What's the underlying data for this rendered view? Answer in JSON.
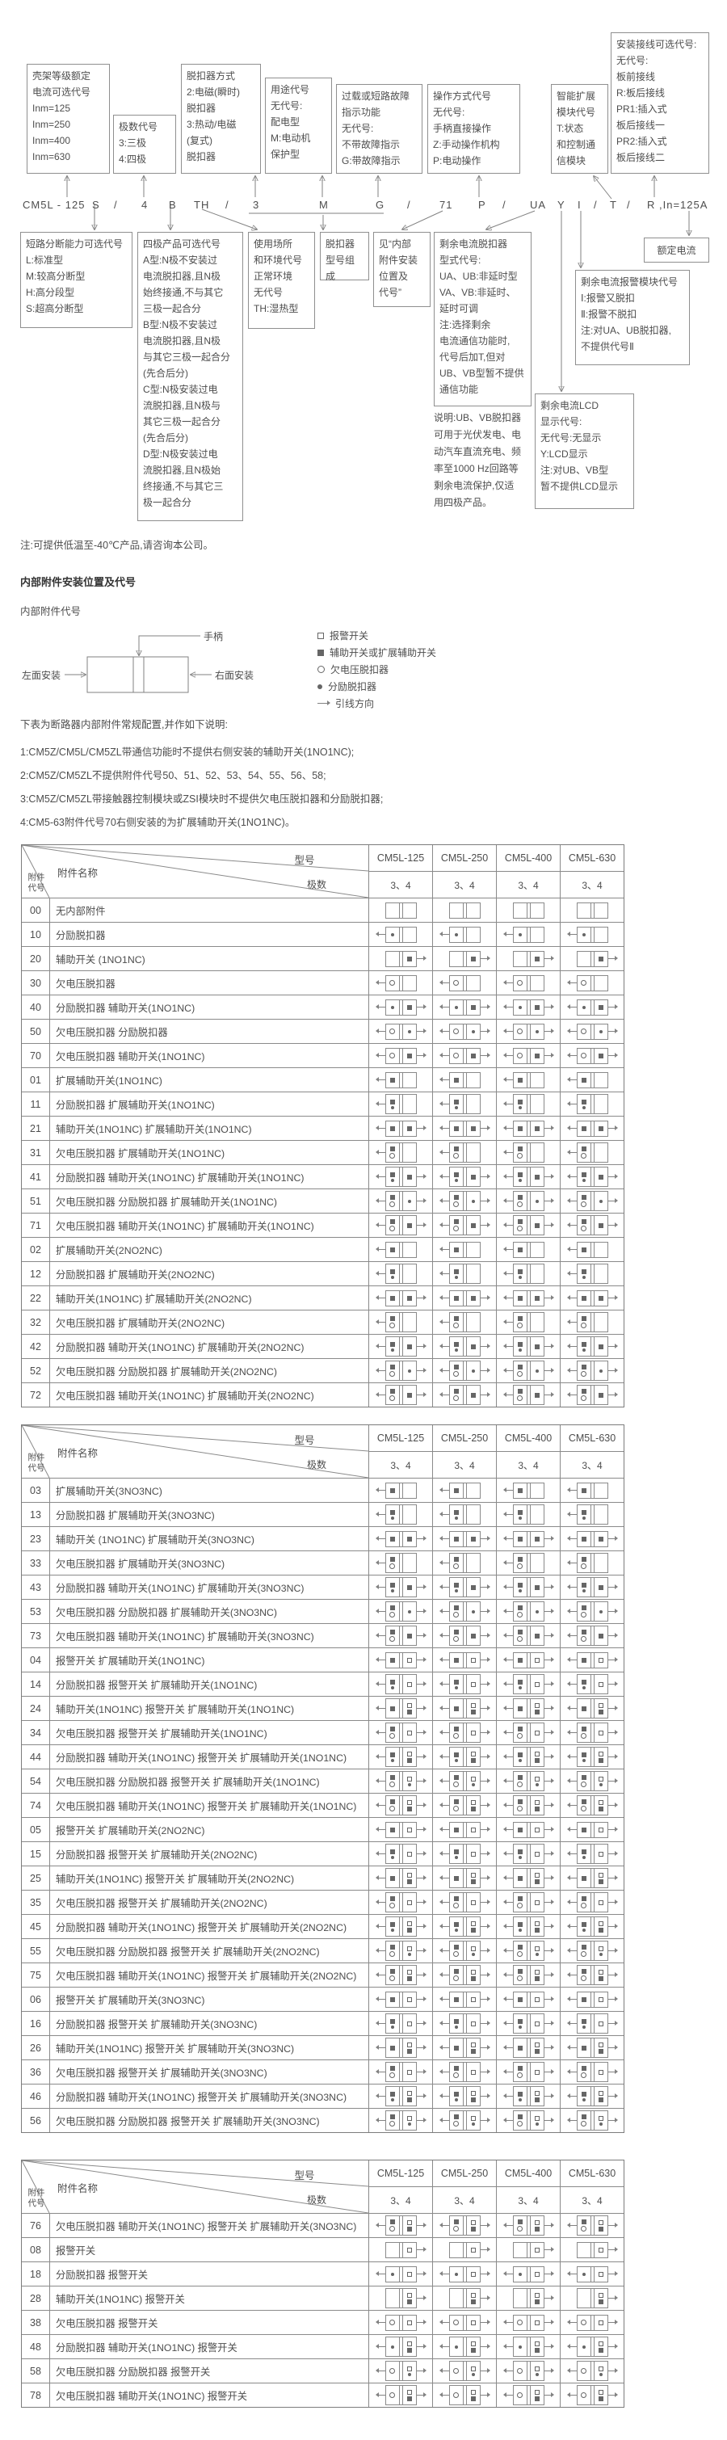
{
  "model_code": {
    "parts": [
      "CM5L - 125",
      "S",
      "/",
      "4",
      "B",
      "TH",
      "/",
      "3",
      "M",
      "G",
      "/",
      "71",
      "P",
      "/",
      "UA",
      "Y",
      "I",
      "/",
      "T",
      "/",
      "R",
      ",In=125A"
    ]
  },
  "top_boxes": [
    {
      "id": "frame-current",
      "text": "壳架等级额定\n电流可选代号\nInm=125\nInm=250\nInm=400\nInm=630"
    },
    {
      "id": "poles",
      "text": "极数代号\n3:三极\n4:四极"
    },
    {
      "id": "trip-mode",
      "text": "脱扣器方式\n2:电磁(瞬时)\n 脱扣器\n3:热动/电磁\n (复式)\n 脱扣器"
    },
    {
      "id": "usage",
      "text": "用途代号\n无代号:\n配电型\nM:电动机\n 保护型"
    },
    {
      "id": "fault-indication",
      "text": "过载或短路故障\n指示功能\n无代号:\n不带故障指示\nG:带故障指示"
    },
    {
      "id": "operation-mode",
      "text": "操作方式代号\n无代号:\n手柄直接操作\nZ:手动操作机构\nP:电动操作"
    },
    {
      "id": "smart-module",
      "text": "智能扩展\n模块代号\nT:状态\n和控制通\n信模块"
    },
    {
      "id": "wiring",
      "text": "安装接线可选代号:\n无代号:\n板前接线\nR:板后接线\nPR1:插入式\n 板后接线一\nPR2:插入式\n 板后接线二"
    }
  ],
  "bottom_boxes": [
    {
      "id": "breaking-capacity",
      "text": "短路分断能力可选代号\nL:标准型\nM:较高分断型\nH:高分段型\nS:超高分断型"
    },
    {
      "id": "four-pole-option",
      "text": "四极产品可选代号\nA型:N极不安装过\n电流脱扣器,且N极\n始终接通,不与其它\n三极一起合分\nB型:N极不安装过\n电流脱扣器,且N极\n与其它三极一起合分\n(先合后分)\nC型:N极安装过电\n流脱扣器,且N极与\n其它三极一起合分\n(先合后分)\nD型:N极安装过电\n流脱扣器,且N极始\n终接通,不与其它三\n极一起合分"
    },
    {
      "id": "environment",
      "text": "使用场所\n和环境代号\n正常环境\n无代号\nTH:湿热型"
    },
    {
      "id": "trip-unit-model",
      "text": "脱扣器\n型号组成"
    },
    {
      "id": "internal-accessory-ref",
      "text": "见“内部\n附件安装\n位置及\n代号”"
    },
    {
      "id": "residual-trip-type",
      "text": "剩余电流脱扣器\n型式代号:\nUA、UB:非延时型\nVA、VB:非延时、\n 延时可调\n注:选择剩余\n电流通信功能时,\n代号后加T,但对\nUB、VB型暂不提供\n通信功能"
    },
    {
      "id": "residual-alarm-module",
      "text": "剩余电流报警模块代号\nⅠ:报警又脱扣\nⅡ:报警不脱扣\n注:对UA、UB脱扣器,\n不提供代号Ⅱ"
    },
    {
      "id": "residual-lcd",
      "text": "剩余电流LCD\n显示代号:\n无代号:无显示\nY:LCD显示\n注:对UB、VB型\n暂不提供LCD显示"
    },
    {
      "id": "rated-current",
      "text": "额定电流"
    }
  ],
  "residual_note": "说明:UB、VB脱扣器\n可用于光伏发电、电\n动汽车直流充电、频\n率至1000 Hz回路等\n剩余电流保护,仅适\n用四极产品。",
  "low_temp_note": "注:可提供低温至-40℃产品,请咨询本公司。",
  "section2": {
    "heading": "内部附件安装位置及代号",
    "subheading": "内部附件代号",
    "handle_label": "手柄",
    "left_mount_label": "左面安装",
    "right_mount_label": "右面安装",
    "legend": [
      {
        "symbol": "alarm",
        "label": "报警开关"
      },
      {
        "symbol": "aux",
        "label": "辅助开关或扩展辅助开关"
      },
      {
        "symbol": "uv",
        "label": "欠电压脱扣器"
      },
      {
        "symbol": "shunt",
        "label": "分励脱扣器"
      },
      {
        "symbol": "lead",
        "label": "引线方向"
      }
    ],
    "intro": "下表为断路器内部附件常规配置,并作如下说明:",
    "notes": [
      "1:CM5Z/CM5L/CM5ZL带通信功能时不提供右侧安装的辅助开关(1NO1NC);",
      "2:CM5Z/CM5ZL不提供附件代号50、51、52、53、54、55、56、58;",
      "3:CM5Z/CM5ZL带接触器控制模块或ZSI模块时不提供欠电压脱扣器和分励脱扣器;",
      "4:CM5-63附件代号70右侧安装的为扩展辅助开关(1NO1NC)。"
    ]
  },
  "table_header": {
    "model_label": "型号",
    "poles_label": "极数",
    "name_label": "附件名称",
    "code_label": "附件\n代号",
    "models": [
      "CM5L-125",
      "CM5L-250",
      "CM5L-400",
      "CM5L-630"
    ],
    "poles_value": "3、4"
  },
  "tables": [
    {
      "rows": [
        {
          "code": "00",
          "name": "无内部附件",
          "left": [],
          "right": []
        },
        {
          "code": "10",
          "name": "分励脱扣器",
          "left": [
            "shunt"
          ],
          "right": []
        },
        {
          "code": "20",
          "name": "辅助开关 (1NO1NC)",
          "left": [],
          "right": [
            "aux"
          ]
        },
        {
          "code": "30",
          "name": "欠电压脱扣器",
          "left": [
            "uv"
          ],
          "right": []
        },
        {
          "code": "40",
          "name": "分励脱扣器 辅助开关(1NO1NC)",
          "left": [
            "shunt"
          ],
          "right": [
            "aux"
          ]
        },
        {
          "code": "50",
          "name": "欠电压脱扣器 分励脱扣器",
          "left": [
            "uv"
          ],
          "right": [
            "shunt"
          ]
        },
        {
          "code": "70",
          "name": "欠电压脱扣器 辅助开关(1NO1NC)",
          "left": [
            "uv"
          ],
          "right": [
            "aux"
          ]
        },
        {
          "code": "01",
          "name": "扩展辅助开关(1NO1NC)",
          "left": [
            "aux"
          ],
          "right": []
        },
        {
          "code": "11",
          "name": "分励脱扣器 扩展辅助开关(1NO1NC)",
          "left": [
            "aux",
            "shunt"
          ],
          "right": []
        },
        {
          "code": "21",
          "name": "辅助开关(1NO1NC) 扩展辅助开关(1NO1NC)",
          "left": [
            "aux"
          ],
          "right": [
            "aux"
          ]
        },
        {
          "code": "31",
          "name": "欠电压脱扣器 扩展辅助开关(1NO1NC)",
          "left": [
            "aux",
            "uv"
          ],
          "right": []
        },
        {
          "code": "41",
          "name": "分励脱扣器 辅助开关(1NO1NC) 扩展辅助开关(1NO1NC)",
          "left": [
            "aux",
            "shunt"
          ],
          "right": [
            "aux"
          ]
        },
        {
          "code": "51",
          "name": "欠电压脱扣器 分励脱扣器 扩展辅助开关(1NO1NC)",
          "left": [
            "aux",
            "uv"
          ],
          "right": [
            "shunt"
          ]
        },
        {
          "code": "71",
          "name": "欠电压脱扣器 辅助开关(1NO1NC) 扩展辅助开关(1NO1NC)",
          "left": [
            "aux",
            "uv"
          ],
          "right": [
            "aux"
          ]
        },
        {
          "code": "02",
          "name": "扩展辅助开关(2NO2NC)",
          "left": [
            "aux"
          ],
          "right": []
        },
        {
          "code": "12",
          "name": "分励脱扣器 扩展辅助开关(2NO2NC)",
          "left": [
            "aux",
            "shunt"
          ],
          "right": []
        },
        {
          "code": "22",
          "name": "辅助开关(1NO1NC) 扩展辅助开关(2NO2NC)",
          "left": [
            "aux"
          ],
          "right": [
            "aux"
          ]
        },
        {
          "code": "32",
          "name": "欠电压脱扣器 扩展辅助开关(2NO2NC)",
          "left": [
            "aux",
            "uv"
          ],
          "right": []
        },
        {
          "code": "42",
          "name": "分励脱扣器 辅助开关(1NO1NC) 扩展辅助开关(2NO2NC)",
          "left": [
            "aux",
            "shunt"
          ],
          "right": [
            "aux"
          ]
        },
        {
          "code": "52",
          "name": "欠电压脱扣器 分励脱扣器 扩展辅助开关(2NO2NC)",
          "left": [
            "aux",
            "uv"
          ],
          "right": [
            "shunt"
          ]
        },
        {
          "code": "72",
          "name": "欠电压脱扣器 辅助开关(1NO1NC) 扩展辅助开关(2NO2NC)",
          "left": [
            "aux",
            "uv"
          ],
          "right": [
            "aux"
          ]
        }
      ]
    },
    {
      "rows": [
        {
          "code": "03",
          "name": "扩展辅助开关(3NO3NC)",
          "left": [
            "aux"
          ],
          "right": []
        },
        {
          "code": "13",
          "name": "分励脱扣器 扩展辅助开关(3NO3NC)",
          "left": [
            "aux",
            "shunt"
          ],
          "right": []
        },
        {
          "code": "23",
          "name": "辅助开关 (1NO1NC) 扩展辅助开关(3NO3NC)",
          "left": [
            "aux"
          ],
          "right": [
            "aux"
          ]
        },
        {
          "code": "33",
          "name": "欠电压脱扣器 扩展辅助开关(3NO3NC)",
          "left": [
            "aux",
            "uv"
          ],
          "right": []
        },
        {
          "code": "43",
          "name": "分励脱扣器 辅助开关(1NO1NC) 扩展辅助开关(3NO3NC)",
          "left": [
            "aux",
            "shunt"
          ],
          "right": [
            "aux"
          ]
        },
        {
          "code": "53",
          "name": "欠电压脱扣器 分励脱扣器 扩展辅助开关(3NO3NC)",
          "left": [
            "aux",
            "uv"
          ],
          "right": [
            "shunt"
          ]
        },
        {
          "code": "73",
          "name": "欠电压脱扣器 辅助开关(1NO1NC) 扩展辅助开关(3NO3NC)",
          "left": [
            "aux",
            "uv"
          ],
          "right": [
            "aux"
          ]
        },
        {
          "code": "04",
          "name": "报警开关 扩展辅助开关(1NO1NC)",
          "left": [
            "aux"
          ],
          "right": [
            "alarm"
          ]
        },
        {
          "code": "14",
          "name": "分励脱扣器 报警开关 扩展辅助开关(1NO1NC)",
          "left": [
            "aux",
            "shunt"
          ],
          "right": [
            "alarm"
          ]
        },
        {
          "code": "24",
          "name": "辅助开关(1NO1NC) 报警开关 扩展辅助开关(1NO1NC)",
          "left": [
            "aux"
          ],
          "right": [
            "alarm",
            "aux"
          ]
        },
        {
          "code": "34",
          "name": "欠电压脱扣器 报警开关 扩展辅助开关(1NO1NC)",
          "left": [
            "aux",
            "uv"
          ],
          "right": [
            "alarm"
          ]
        },
        {
          "code": "44",
          "name": "分励脱扣器 辅助开关(1NO1NC) 报警开关 扩展辅助开关(1NO1NC)",
          "left": [
            "aux",
            "shunt"
          ],
          "right": [
            "alarm",
            "aux"
          ]
        },
        {
          "code": "54",
          "name": "欠电压脱扣器 分励脱扣器 报警开关 扩展辅助开关(1NO1NC)",
          "left": [
            "aux",
            "uv"
          ],
          "right": [
            "alarm",
            "shunt"
          ]
        },
        {
          "code": "74",
          "name": "欠电压脱扣器 辅助开关(1NO1NC) 报警开关 扩展辅助开关(1NO1NC)",
          "left": [
            "aux",
            "uv"
          ],
          "right": [
            "alarm",
            "aux"
          ]
        },
        {
          "code": "05",
          "name": "报警开关 扩展辅助开关(2NO2NC)",
          "left": [
            "aux"
          ],
          "right": [
            "alarm"
          ]
        },
        {
          "code": "15",
          "name": "分励脱扣器 报警开关 扩展辅助开关(2NO2NC)",
          "left": [
            "aux",
            "shunt"
          ],
          "right": [
            "alarm"
          ]
        },
        {
          "code": "25",
          "name": "辅助开关(1NO1NC) 报警开关 扩展辅助开关(2NO2NC)",
          "left": [
            "aux"
          ],
          "right": [
            "alarm",
            "aux"
          ]
        },
        {
          "code": "35",
          "name": "欠电压脱扣器 报警开关 扩展辅助开关(2NO2NC)",
          "left": [
            "aux",
            "uv"
          ],
          "right": [
            "alarm"
          ]
        },
        {
          "code": "45",
          "name": "分励脱扣器 辅助开关(1NO1NC) 报警开关 扩展辅助开关(2NO2NC)",
          "left": [
            "aux",
            "shunt"
          ],
          "right": [
            "alarm",
            "aux"
          ]
        },
        {
          "code": "55",
          "name": "欠电压脱扣器 分励脱扣器 报警开关 扩展辅助开关(2NO2NC)",
          "left": [
            "aux",
            "uv"
          ],
          "right": [
            "alarm",
            "shunt"
          ]
        },
        {
          "code": "75",
          "name": "欠电压脱扣器 辅助开关(1NO1NC) 报警开关 扩展辅助开关(2NO2NC)",
          "left": [
            "aux",
            "uv"
          ],
          "right": [
            "alarm",
            "aux"
          ]
        },
        {
          "code": "06",
          "name": "报警开关 扩展辅助开关(3NO3NC)",
          "left": [
            "aux"
          ],
          "right": [
            "alarm"
          ]
        },
        {
          "code": "16",
          "name": "分励脱扣器 报警开关 扩展辅助开关(3NO3NC)",
          "left": [
            "aux",
            "shunt"
          ],
          "right": [
            "alarm"
          ]
        },
        {
          "code": "26",
          "name": "辅助开关(1NO1NC) 报警开关 扩展辅助开关(3NO3NC)",
          "left": [
            "aux"
          ],
          "right": [
            "alarm",
            "aux"
          ]
        },
        {
          "code": "36",
          "name": "欠电压脱扣器 报警开关 扩展辅助开关(3NO3NC)",
          "left": [
            "aux",
            "uv"
          ],
          "right": [
            "alarm"
          ]
        },
        {
          "code": "46",
          "name": "分励脱扣器 辅助开关(1NO1NC) 报警开关 扩展辅助开关(3NO3NC)",
          "left": [
            "aux",
            "shunt"
          ],
          "right": [
            "alarm",
            "aux"
          ]
        },
        {
          "code": "56",
          "name": "欠电压脱扣器 分励脱扣器 报警开关 扩展辅助开关(3NO3NC)",
          "left": [
            "aux",
            "uv"
          ],
          "right": [
            "alarm",
            "shunt"
          ]
        }
      ]
    },
    {
      "rows": [
        {
          "code": "76",
          "name": "欠电压脱扣器 辅助开关(1NO1NC) 报警开关 扩展辅助开关(3NO3NC)",
          "left": [
            "aux",
            "uv"
          ],
          "right": [
            "alarm",
            "aux"
          ]
        },
        {
          "code": "08",
          "name": "报警开关",
          "left": [],
          "right": [
            "alarm"
          ]
        },
        {
          "code": "18",
          "name": "分励脱扣器 报警开关",
          "left": [
            "shunt"
          ],
          "right": [
            "alarm"
          ]
        },
        {
          "code": "28",
          "name": "辅助开关(1NO1NC) 报警开关",
          "left": [],
          "right": [
            "alarm",
            "aux"
          ]
        },
        {
          "code": "38",
          "name": "欠电压脱扣器 报警开关",
          "left": [
            "uv"
          ],
          "right": [
            "alarm"
          ]
        },
        {
          "code": "48",
          "name": "分励脱扣器 辅助开关(1NO1NC) 报警开关",
          "left": [
            "shunt"
          ],
          "right": [
            "alarm",
            "aux"
          ]
        },
        {
          "code": "58",
          "name": "欠电压脱扣器 分励脱扣器 报警开关",
          "left": [
            "uv"
          ],
          "right": [
            "alarm",
            "shunt"
          ]
        },
        {
          "code": "78",
          "name": "欠电压脱扣器 辅助开关(1NO1NC) 报警开关",
          "left": [
            "uv"
          ],
          "right": [
            "alarm",
            "aux"
          ]
        }
      ]
    }
  ]
}
